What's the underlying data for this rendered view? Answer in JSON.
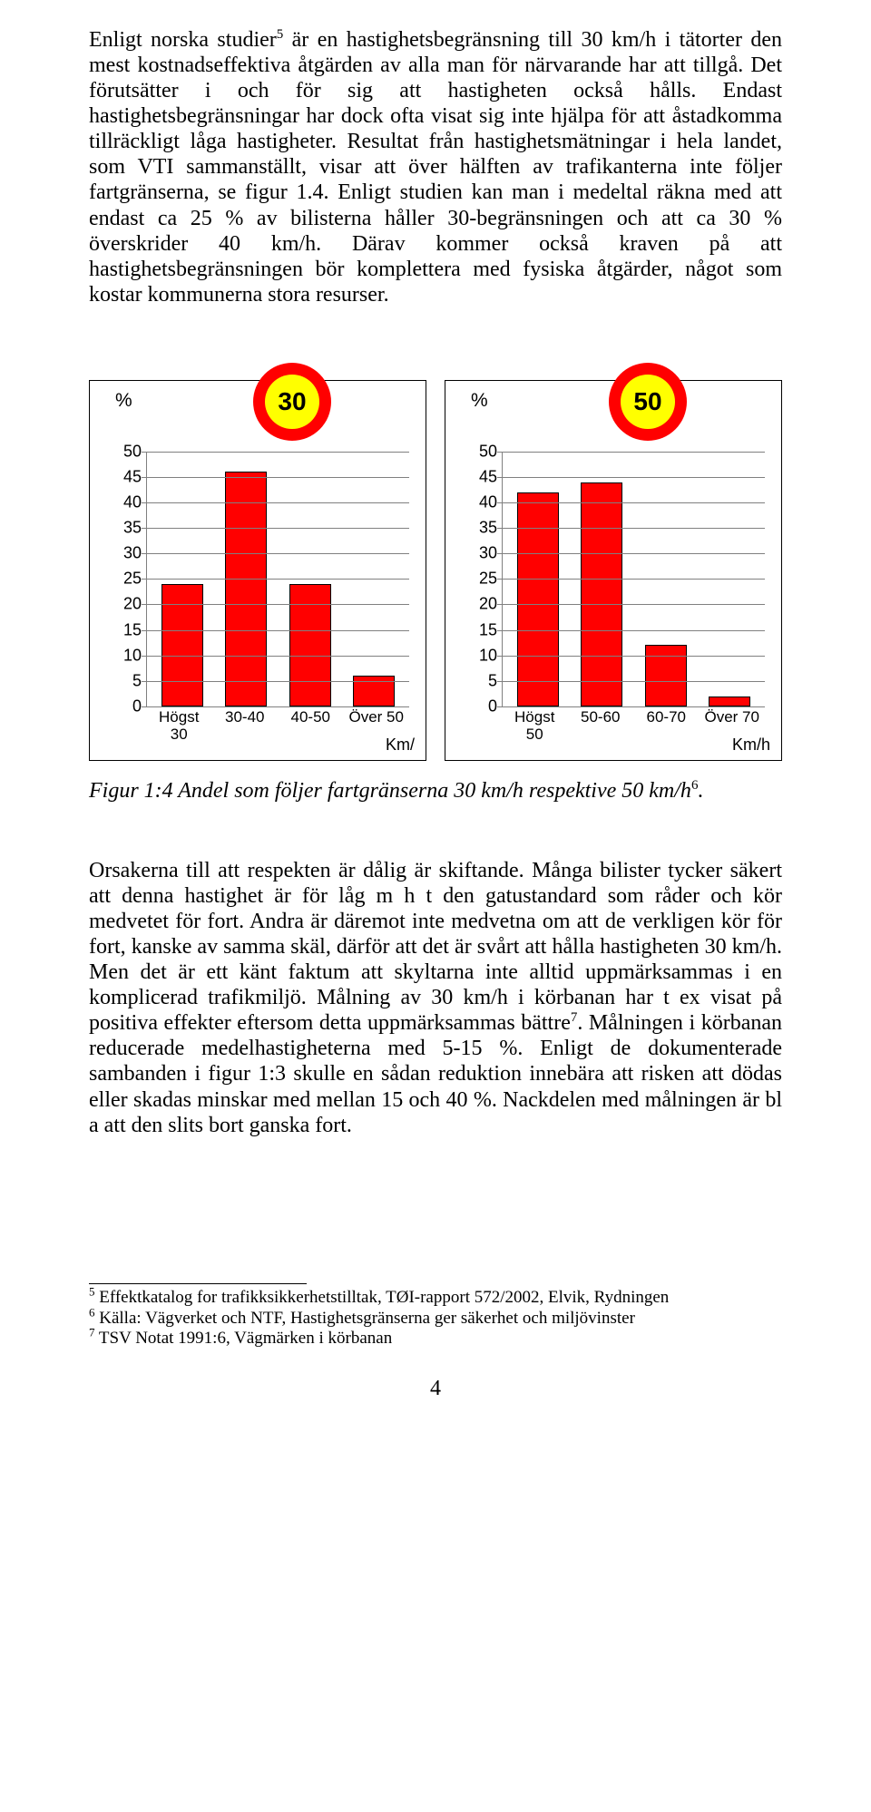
{
  "para1_a": "Enligt norska studier",
  "para1_sup": "5",
  "para1_b": " är en hastighetsbegränsning till 30 km/h i tätorter den mest kostnadseffektiva åtgärden av alla man för närvarande har att tillgå. Det förutsätter i och för sig att hastigheten också hålls. Endast hastighetsbegränsningar har dock ofta visat sig inte hjälpa för att åstadkomma tillräckligt låga hastigheter. Resultat från hastighetsmätningar i hela landet, som VTI sammanställt, visar att över hälften av trafikanterna inte följer fartgränserna, se figur 1.4. Enligt studien kan man i medeltal räkna med att endast ca 25 % av bilisterna håller 30-begränsningen och att ca 30 % överskrider 40 km/h. Därav kommer också kraven på att hastighetsbegränsningen bör komplettera med fysiska åtgärder, något som kostar kommunerna stora resurser.",
  "chart_left": {
    "pct": "%",
    "sign": "30",
    "ylim_max": 50,
    "ytick_step": 5,
    "categories": [
      "Högst 30",
      "30-40",
      "40-50",
      "Över 50"
    ],
    "values": [
      24,
      46,
      24,
      6
    ],
    "bar_color": "#ff0000",
    "unit": "Km/"
  },
  "chart_right": {
    "pct": "%",
    "sign": "50",
    "ylim_max": 50,
    "ytick_step": 5,
    "categories": [
      "Högst 50",
      "50-60",
      "60-70",
      "Över 70"
    ],
    "values": [
      42,
      44,
      12,
      2
    ],
    "bar_color": "#ff0000",
    "unit": "Km/h"
  },
  "caption_head": "Figur 1:4",
  "caption_body": "  Andel som följer fartgränserna 30 km/h respektive 50 km/h",
  "caption_sup": "6",
  "caption_tail": ".",
  "para2_a": "Orsakerna till att respekten är dålig är skiftande. Många bilister tycker säkert att denna hastighet är för låg m h t den gatustandard som råder och kör medvetet för fort. Andra är däremot inte medvetna om att de verkligen kör för fort, kanske av samma skäl, därför att det är svårt att hålla hastigheten 30 km/h. Men det är ett känt faktum att skyltarna inte alltid uppmärksammas i en komplicerad trafikmiljö. Målning av 30 km/h i körbanan har t ex visat på positiva effekter eftersom detta uppmärksammas bättre",
  "para2_sup": "7",
  "para2_b": ". Målningen i körbanan reducerade medelhastigheterna med 5-15 %. Enligt de dokumenterade sambanden i figur 1:3 skulle en sådan reduktion innebära att risken att dödas eller skadas minskar med mellan 15 och 40 %. Nackdelen med målningen är bl a att den slits bort ganska fort.",
  "fn5_num": "5",
  "fn5_text": " Effektkatalog for trafikksikkerhetstilltak, TØI-rapport 572/2002, Elvik, Rydningen",
  "fn6_num": "6",
  "fn6_text": " Källa: Vägverket och NTF, Hastighetsgränserna ger säkerhet och miljövinster",
  "fn7_num": "7",
  "fn7_text": " TSV Notat 1991:6, Vägmärken i körbanan",
  "page_number": "4"
}
